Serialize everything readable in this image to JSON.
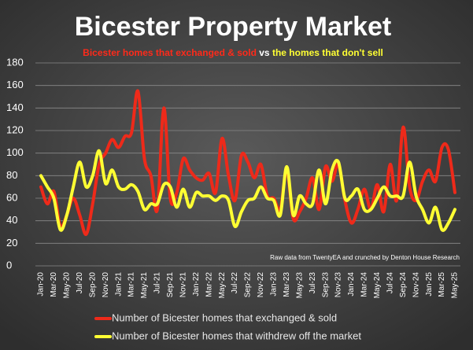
{
  "chart_data": {
    "type": "line",
    "title": "Bicester Property Market",
    "subtitle": [
      {
        "text": "Bicester homes that exchanged & sold",
        "color": "#ff2a1a"
      },
      {
        "text": "vs",
        "color": "#ffffff"
      },
      {
        "text": "the homes that don't sell",
        "color": "#ffff33"
      }
    ],
    "annotation": "Raw data from TwentyEA and crunched by Denton House Research",
    "categories": [
      "Jan-20",
      null,
      "Mar-20",
      null,
      "May-20",
      null,
      "Jul-20",
      null,
      "Sep-20",
      null,
      "Nov-20",
      null,
      "Jan-21",
      null,
      "Mar-21",
      null,
      "May-21",
      null,
      "Jul-21",
      null,
      "Sep-21",
      null,
      "Nov-21",
      null,
      "Jan-22",
      null,
      "Mar-22",
      null,
      "May-22",
      null,
      "Jul-22",
      null,
      "Sep-22",
      null,
      "Nov-22",
      null,
      "Jan-23",
      null,
      "Mar-23",
      null,
      "May-23",
      null,
      "Jul-23",
      null,
      "Sep-23",
      null,
      "Nov-23",
      null,
      "Jan-24",
      null,
      "Mar-24",
      null,
      "May-24",
      null,
      "Jul-24",
      null,
      "Sep-24",
      null,
      "Nov-24",
      null,
      "Jan-25",
      null,
      "Mar-25",
      null,
      "May-25"
    ],
    "series": [
      {
        "name": "Number of Bicester homes that exchanged & sold",
        "color": "#ee2a1a",
        "values": [
          70,
          55,
          66,
          35,
          45,
          60,
          45,
          28,
          55,
          90,
          100,
          112,
          105,
          115,
          118,
          155,
          95,
          80,
          50,
          140,
          60,
          65,
          95,
          85,
          78,
          76,
          82,
          65,
          113,
          80,
          58,
          98,
          92,
          78,
          90,
          62,
          60,
          50,
          85,
          42,
          48,
          60,
          78,
          50,
          88,
          75,
          90,
          58,
          38,
          50,
          68,
          50,
          72,
          48,
          90,
          58,
          123,
          70,
          58,
          75,
          85,
          75,
          105,
          103,
          65
        ]
      },
      {
        "name": "Number of Bicester homes that withdrew off the market",
        "color": "#ffff33",
        "values": [
          80,
          70,
          60,
          32,
          45,
          70,
          92,
          70,
          80,
          102,
          73,
          85,
          70,
          68,
          72,
          66,
          50,
          55,
          55,
          72,
          70,
          52,
          68,
          52,
          65,
          62,
          62,
          58,
          62,
          58,
          35,
          48,
          58,
          60,
          70,
          60,
          58,
          45,
          88,
          45,
          62,
          55,
          55,
          85,
          55,
          85,
          92,
          60,
          62,
          68,
          50,
          50,
          60,
          70,
          62,
          62,
          62,
          92,
          62,
          50,
          38,
          52,
          32,
          38,
          50
        ]
      }
    ],
    "ylim": [
      0,
      180
    ],
    "yticks": [
      0,
      20,
      40,
      60,
      80,
      100,
      120,
      140,
      160,
      180
    ],
    "grid": true
  }
}
